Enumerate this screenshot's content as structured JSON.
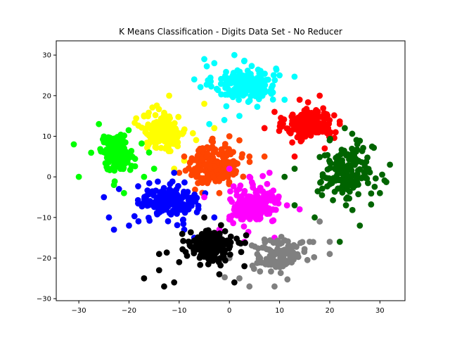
{
  "chart_data": {
    "type": "scatter",
    "title": "K Means Classification - Digits Data Set - No Reducer",
    "xlabel": "",
    "ylabel": "",
    "xlim": [
      -34.5,
      35
    ],
    "ylim": [
      -30.5,
      33.5
    ],
    "xticks": [
      -30,
      -20,
      -10,
      0,
      10,
      20,
      30
    ],
    "yticks": [
      -30,
      -20,
      -10,
      0,
      10,
      20,
      30
    ],
    "xtick_labels": [
      "−30",
      "−20",
      "−10",
      "0",
      "10",
      "20",
      "30"
    ],
    "ytick_labels": [
      "−30",
      "−20",
      "−10",
      "0",
      "10",
      "20",
      "30"
    ],
    "grid": false,
    "legend": "none",
    "clusters": [
      {
        "color": "#00ffff",
        "center": [
          3,
          23
        ],
        "spread": [
          5,
          3.5
        ],
        "count": 175,
        "outliers": [
          [
            -7,
            24
          ],
          [
            -5,
            29
          ],
          [
            -3,
            28
          ],
          [
            1,
            30
          ],
          [
            10,
            25
          ],
          [
            8,
            21
          ],
          [
            -4,
            13
          ],
          [
            2,
            15
          ],
          [
            -1,
            14
          ],
          [
            11,
            19
          ]
        ]
      },
      {
        "color": "#ff0000",
        "center": [
          16,
          13
        ],
        "spread": [
          3.8,
          3.2
        ],
        "count": 170,
        "outliers": [
          [
            9,
            16
          ],
          [
            7,
            12
          ],
          [
            13,
            5
          ],
          [
            19,
            7
          ],
          [
            22,
            13
          ],
          [
            18,
            20
          ],
          [
            14,
            19
          ]
        ]
      },
      {
        "color": "#ffff00",
        "center": [
          -13,
          11
        ],
        "spread": [
          3.5,
          3.5
        ],
        "count": 175,
        "outliers": [
          [
            -17,
            15
          ],
          [
            -12,
            20
          ],
          [
            -5,
            18
          ],
          [
            -3,
            12
          ],
          [
            -11,
            2
          ],
          [
            -9,
            4
          ]
        ]
      },
      {
        "color": "#00ff00",
        "center": [
          -22.5,
          6
        ],
        "spread": [
          2.8,
          3.5
        ],
        "count": 135,
        "outliers": [
          [
            -31,
            8
          ],
          [
            -30,
            0
          ],
          [
            -23,
            -2
          ],
          [
            -21,
            -4
          ],
          [
            -15,
            2
          ],
          [
            -17,
            0
          ],
          [
            -26,
            13
          ],
          [
            -16,
            6
          ]
        ]
      },
      {
        "color": "#ff4500",
        "center": [
          -3,
          3
        ],
        "spread": [
          4,
          4
        ],
        "count": 190,
        "outliers": [
          [
            0,
            10
          ],
          [
            2,
            9
          ],
          [
            4,
            5
          ],
          [
            7,
            5
          ],
          [
            -10,
            1
          ],
          [
            -9,
            5
          ],
          [
            -2,
            -4
          ]
        ]
      },
      {
        "color": "#006400",
        "center": [
          23.5,
          1
        ],
        "spread": [
          4.3,
          5.5
        ],
        "count": 175,
        "outliers": [
          [
            32,
            3
          ],
          [
            30,
            -4
          ],
          [
            26,
            -12
          ],
          [
            22,
            -16
          ],
          [
            13,
            -7
          ],
          [
            17,
            -10
          ],
          [
            20,
            9
          ],
          [
            23,
            12
          ],
          [
            13,
            2
          ],
          [
            11,
            0
          ]
        ]
      },
      {
        "color": "#0000ff",
        "center": [
          -12,
          -6
        ],
        "spread": [
          4.5,
          3.5
        ],
        "count": 165,
        "outliers": [
          [
            -20,
            -12
          ],
          [
            -23,
            -13
          ],
          [
            -24,
            -10
          ],
          [
            -25,
            -5
          ],
          [
            -22,
            -3
          ],
          [
            -11,
            1
          ],
          [
            -7,
            -15
          ],
          [
            -9,
            -13
          ],
          [
            -3,
            -10
          ]
        ]
      },
      {
        "color": "#ff00ff",
        "center": [
          5,
          -7
        ],
        "spread": [
          4,
          3.5
        ],
        "count": 180,
        "outliers": [
          [
            0,
            2
          ],
          [
            4,
            0
          ],
          [
            8,
            1
          ],
          [
            14,
            -8
          ],
          [
            -2,
            -13
          ],
          [
            3,
            -16
          ],
          [
            9,
            -15
          ],
          [
            -5,
            -5
          ]
        ]
      },
      {
        "color": "#808080",
        "center": [
          10,
          -19
        ],
        "spread": [
          4.5,
          3.3
        ],
        "count": 110,
        "outliers": [
          [
            2,
            -25
          ],
          [
            4,
            -27
          ],
          [
            16,
            -16
          ],
          [
            18,
            -11
          ],
          [
            20,
            -16
          ],
          [
            20,
            -19
          ],
          [
            9,
            -27
          ],
          [
            0,
            -20
          ]
        ]
      },
      {
        "color": "#000000",
        "center": [
          -3.5,
          -17
        ],
        "spread": [
          3.5,
          3
        ],
        "count": 190,
        "outliers": [
          [
            -17,
            -25
          ],
          [
            -14,
            -23
          ],
          [
            -13,
            -27
          ],
          [
            -11,
            -26
          ],
          [
            -10,
            -21
          ],
          [
            -14,
            -19
          ],
          [
            1,
            -26
          ],
          [
            -2,
            -24
          ],
          [
            -5,
            -10
          ],
          [
            3,
            -22
          ]
        ]
      }
    ]
  }
}
